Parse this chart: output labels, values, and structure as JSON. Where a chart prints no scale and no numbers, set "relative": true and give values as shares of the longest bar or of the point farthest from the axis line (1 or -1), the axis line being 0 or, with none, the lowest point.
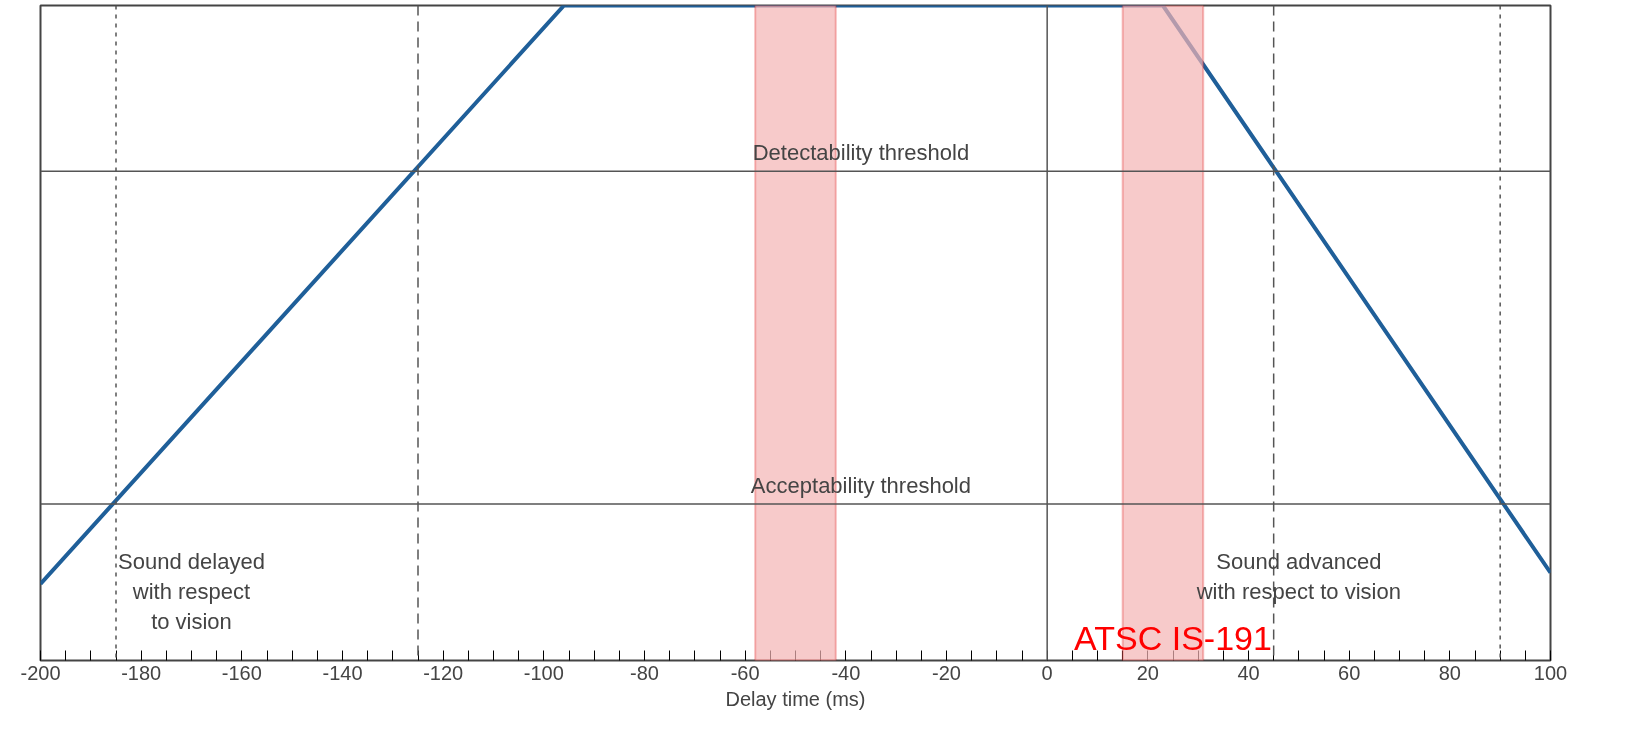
{
  "chart_data": {
    "type": "line",
    "relative": true,
    "xlabel": "Delay time (ms)",
    "x": [
      -200,
      -96,
      23,
      100
    ],
    "series": [
      {
        "color": "#1f5f99",
        "values": [
          0.117,
          1,
          1,
          0.134
        ]
      }
    ],
    "xlim": [
      -200,
      100
    ],
    "xticks": [
      -200,
      -180,
      -160,
      -140,
      -120,
      -100,
      -80,
      -60,
      -40,
      -20,
      0,
      20,
      40,
      60,
      80,
      100,
      {
        "value": -195,
        "label": null
      },
      {
        "value": -190,
        "label": null
      },
      {
        "value": -185,
        "label": null
      },
      {
        "value": -175,
        "label": null
      },
      {
        "value": -170,
        "label": null
      },
      {
        "value": -165,
        "label": null
      },
      {
        "value": -155,
        "label": null
      },
      {
        "value": -150,
        "label": null
      },
      {
        "value": -145,
        "label": null
      },
      {
        "value": -135,
        "label": null
      },
      {
        "value": -130,
        "label": null
      },
      {
        "value": -125,
        "label": null
      },
      {
        "value": -115,
        "label": null
      },
      {
        "value": -110,
        "label": null
      },
      {
        "value": -105,
        "label": null
      },
      {
        "value": -95,
        "label": null
      },
      {
        "value": -90,
        "label": null
      },
      {
        "value": -85,
        "label": null
      },
      {
        "value": -75,
        "label": null
      },
      {
        "value": -70,
        "label": null
      },
      {
        "value": -65,
        "label": null
      },
      {
        "value": -55,
        "label": null
      },
      {
        "value": -50,
        "label": null
      },
      {
        "value": -45,
        "label": null
      },
      {
        "value": -35,
        "label": null
      },
      {
        "value": -30,
        "label": null
      },
      {
        "value": -25,
        "label": null
      },
      {
        "value": -15,
        "label": null
      },
      {
        "value": -10,
        "label": null
      },
      {
        "value": -5,
        "label": null
      },
      {
        "value": 5,
        "label": null
      },
      {
        "value": 10,
        "label": null
      },
      {
        "value": 15,
        "label": null
      },
      {
        "value": 25,
        "label": null
      },
      {
        "value": 30,
        "label": null
      },
      {
        "value": 35,
        "label": null
      },
      {
        "value": 45,
        "label": null
      },
      {
        "value": 50,
        "label": null
      },
      {
        "value": 55,
        "label": null
      },
      {
        "value": 65,
        "label": null
      },
      {
        "value": 70,
        "label": null
      },
      {
        "value": 75,
        "label": null
      },
      {
        "value": 85,
        "label": null
      },
      {
        "value": 90,
        "label": null
      },
      {
        "value": 95,
        "label": null
      }
    ],
    "ref_lines": [
      {
        "axis": "y",
        "value": 0.747,
        "label": "Detectability threshold",
        "color": "#555555",
        "line_style": "solid"
      },
      {
        "axis": "y",
        "value": 0.239,
        "label": "Acceptability threshold",
        "color": "#555555",
        "line_style": "solid"
      },
      {
        "axis": "x",
        "value": -185,
        "color": "#555555",
        "line_style": "dotted"
      },
      {
        "axis": "x",
        "value": -125,
        "color": "#555555",
        "line_style": "dashed"
      },
      {
        "axis": "x",
        "value": 0,
        "color": "#555555",
        "line_style": "solid"
      },
      {
        "axis": "x",
        "value": 45,
        "color": "#555555",
        "line_style": "dashed"
      },
      {
        "axis": "x",
        "value": 90,
        "color": "#555555",
        "line_style": "dotted"
      }
    ],
    "bands": [
      {
        "axis": "x",
        "from": -58,
        "to": -42,
        "color": "#f4b4b4"
      },
      {
        "axis": "x",
        "from": 15,
        "to": 31,
        "color": "#f4b4b4"
      }
    ],
    "annotations": [
      "Sound delayed\nwith respect\nto vision",
      "Sound advanced\nwith respect to vision",
      "ATSC IS-191"
    ],
    "grid": false
  }
}
